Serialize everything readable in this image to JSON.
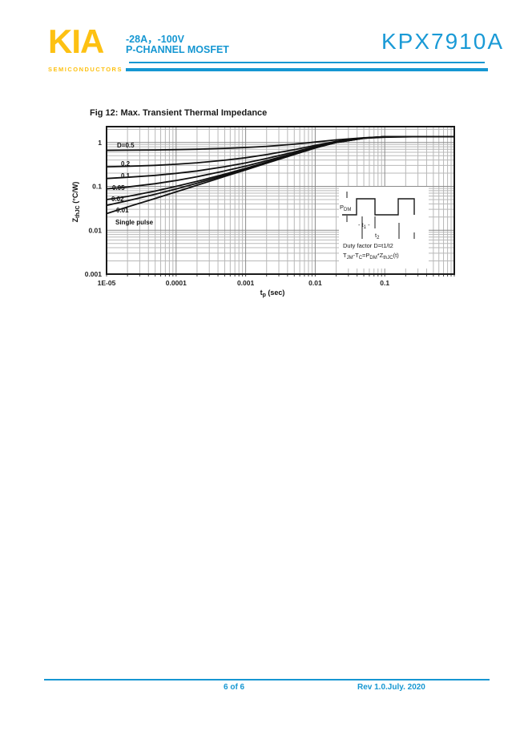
{
  "header": {
    "logo_text": "KIA",
    "logo_sub": "SEMICONDUCTORS",
    "rating_line": "-28A，-100V",
    "type_line": "P-CHANNEL MOSFET",
    "part_number": "KPX7910A"
  },
  "chart_data": {
    "type": "line",
    "title": "Fig 12: Max. Transient Thermal Impedance",
    "x_scale": "log",
    "y_scale": "log",
    "xlim": [
      1e-05,
      1
    ],
    "ylim": [
      0.001,
      2.3
    ],
    "grid": true,
    "steady_state": 1.36,
    "xlabel_parts": [
      [
        "t",
        0
      ],
      [
        "p",
        1
      ],
      [
        " (sec)",
        0
      ]
    ],
    "ylabel_parts": [
      [
        "Z",
        0
      ],
      [
        "thJC",
        1
      ],
      [
        " (°C/W)",
        0
      ]
    ],
    "x_ticks": [
      {
        "v": 1e-05,
        "label": "1E-05"
      },
      {
        "v": 0.0001,
        "label": "0.0001"
      },
      {
        "v": 0.001,
        "label": "0.001"
      },
      {
        "v": 0.01,
        "label": "0.01"
      },
      {
        "v": 0.1,
        "label": "0.1"
      }
    ],
    "y_ticks": [
      {
        "v": 1,
        "label": "1"
      },
      {
        "v": 0.1,
        "label": "0.1"
      },
      {
        "v": 0.01,
        "label": "0.01"
      },
      {
        "v": 0.001,
        "label": "0.001"
      }
    ],
    "t": [
      1e-05,
      2e-05,
      5e-05,
      0.0001,
      0.0002,
      0.0005,
      0.001,
      0.002,
      0.005,
      0.01,
      0.02,
      0.05,
      0.1,
      0.3,
      1
    ],
    "series": [
      {
        "name": "D=0.5",
        "values": [
          0.662,
          0.667,
          0.677,
          0.688,
          0.703,
          0.734,
          0.769,
          0.818,
          0.916,
          1.026,
          1.15,
          1.28,
          1.36,
          1.36,
          1.36
        ]
      },
      {
        "name": "0.2",
        "values": [
          0.279,
          0.287,
          0.302,
          0.32,
          0.345,
          0.394,
          0.45,
          0.529,
          0.685,
          0.861,
          1.06,
          1.27,
          1.36,
          1.36,
          1.36
        ]
      },
      {
        "name": "0.1",
        "values": [
          0.151,
          0.161,
          0.178,
          0.198,
          0.225,
          0.281,
          0.343,
          0.432,
          0.608,
          0.806,
          1.03,
          1.26,
          1.36,
          1.36,
          1.36
        ]
      },
      {
        "name": "0.05",
        "values": [
          0.088,
          0.097,
          0.115,
          0.136,
          0.166,
          0.225,
          0.29,
          0.384,
          0.569,
          0.778,
          1.015,
          1.255,
          1.36,
          1.36,
          1.36
        ]
      },
      {
        "name": "0.02",
        "values": [
          0.05,
          0.059,
          0.078,
          0.1,
          0.13,
          0.191,
          0.258,
          0.355,
          0.546,
          0.762,
          1.006,
          1.251,
          1.36,
          1.36,
          1.36
        ]
      },
      {
        "name": "0.01",
        "values": [
          0.037,
          0.047,
          0.066,
          0.087,
          0.118,
          0.179,
          0.248,
          0.346,
          0.539,
          0.756,
          1.003,
          1.25,
          1.36,
          1.36,
          1.36
        ]
      },
      {
        "name": "Single pulse",
        "values": [
          0.024,
          0.034,
          0.053,
          0.075,
          0.106,
          0.168,
          0.237,
          0.336,
          0.531,
          0.751,
          1.0,
          1.25,
          1.32,
          1.36,
          1.36
        ]
      }
    ],
    "series_label_pos": [
      [
        146,
        184
      ],
      [
        151,
        207
      ],
      [
        151,
        222
      ],
      [
        140,
        237
      ],
      [
        139,
        251
      ],
      [
        145,
        265
      ],
      [
        144,
        280
      ]
    ],
    "legend_position": "labels-on-curves"
  },
  "inset": {
    "pdm_parts": [
      [
        "P",
        0
      ],
      [
        "DM",
        1
      ]
    ],
    "t1_parts": [
      [
        "- t",
        0
      ],
      [
        "1",
        1
      ],
      [
        " -",
        0
      ]
    ],
    "t2_parts": [
      [
        "t",
        0
      ],
      [
        "2",
        1
      ]
    ],
    "line1": "Duty factor D=t1/t2",
    "line2_parts": [
      [
        "T",
        0
      ],
      [
        "JM",
        1
      ],
      [
        "-T",
        0
      ],
      [
        "C",
        1
      ],
      [
        "=P",
        0
      ],
      [
        "DM",
        1
      ],
      [
        "*Z",
        0
      ],
      [
        "thJC",
        1
      ],
      [
        "(t)",
        0
      ]
    ]
  },
  "footer": {
    "page": "6 of 6",
    "revision": "Rev 1.0.July. 2020"
  },
  "colors": {
    "accent_cyan": "#1697d2",
    "logo_yellow": "#fdc113",
    "curve": "#111111",
    "grid_minor": "#b8b8b8",
    "grid_major": "#8a8a8a",
    "frame": "#1a1a1a"
  }
}
